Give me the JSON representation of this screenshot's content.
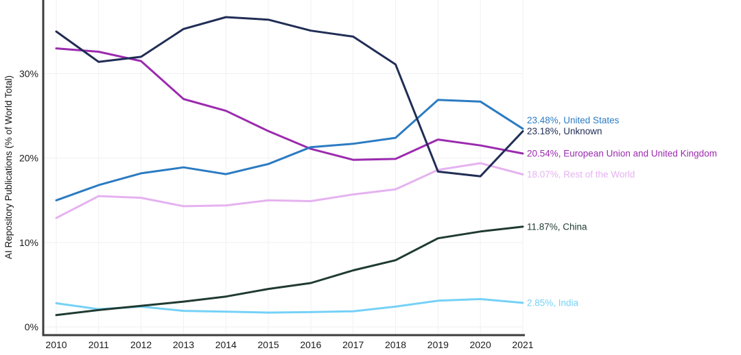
{
  "chart_data": {
    "type": "line",
    "title": "",
    "xlabel": "",
    "ylabel": "AI Repository Publications (% of World Total)",
    "x": [
      2010,
      2011,
      2012,
      2013,
      2014,
      2015,
      2016,
      2017,
      2018,
      2019,
      2020,
      2021
    ],
    "x_tick_labels": [
      "2010",
      "2011",
      "2012",
      "2013",
      "2014",
      "2015",
      "2016",
      "2017",
      "2018",
      "2019",
      "2020",
      "2021"
    ],
    "y_ticks": [
      0,
      10,
      20,
      30
    ],
    "y_tick_labels": [
      "0%",
      "10%",
      "20%",
      "30%"
    ],
    "ylim": [
      0,
      38.8
    ],
    "grid": true,
    "legend_position": "end-of-line-labels-right",
    "series": [
      {
        "name": "United States",
        "color": "#2B7BC2",
        "end_label": "23.48%, United States",
        "end_value": "23.48%",
        "values": [
          15.0,
          16.8,
          18.2,
          18.9,
          18.1,
          19.3,
          21.3,
          21.7,
          22.4,
          26.9,
          26.7,
          23.48
        ]
      },
      {
        "name": "Unknown",
        "color": "#202D55",
        "end_label": "23.18%, Unknown",
        "end_value": "23.18%",
        "values": [
          35.0,
          31.4,
          32.0,
          35.3,
          36.7,
          36.4,
          35.1,
          34.4,
          31.1,
          18.4,
          17.85,
          23.18
        ]
      },
      {
        "name": "European Union and United Kingdom",
        "color": "#9B2BAE",
        "end_label": "20.54%, European Union and United Kingdom",
        "end_value": "20.54%",
        "values": [
          33.0,
          32.6,
          31.5,
          27.0,
          25.6,
          23.2,
          21.1,
          19.8,
          19.9,
          22.2,
          21.5,
          20.54
        ]
      },
      {
        "name": "Rest of the World",
        "color": "#E5B2F0",
        "end_label": "18.07%, Rest of the World",
        "end_value": "18.07%",
        "values": [
          12.9,
          15.5,
          15.3,
          14.3,
          14.4,
          15.0,
          14.9,
          15.7,
          16.3,
          18.6,
          19.4,
          18.07
        ]
      },
      {
        "name": "China",
        "color": "#1F3A31",
        "end_label": "11.87%, China",
        "end_value": "11.87%",
        "values": [
          1.4,
          2.0,
          2.5,
          3.0,
          3.6,
          4.5,
          5.2,
          6.7,
          7.9,
          10.5,
          11.3,
          11.87
        ]
      },
      {
        "name": "India",
        "color": "#75D1F6",
        "end_label": "2.85%, India",
        "end_value": "2.85%",
        "values": [
          2.8,
          2.1,
          2.4,
          1.9,
          1.8,
          1.7,
          1.75,
          1.85,
          2.4,
          3.1,
          3.3,
          2.85
        ]
      }
    ]
  }
}
